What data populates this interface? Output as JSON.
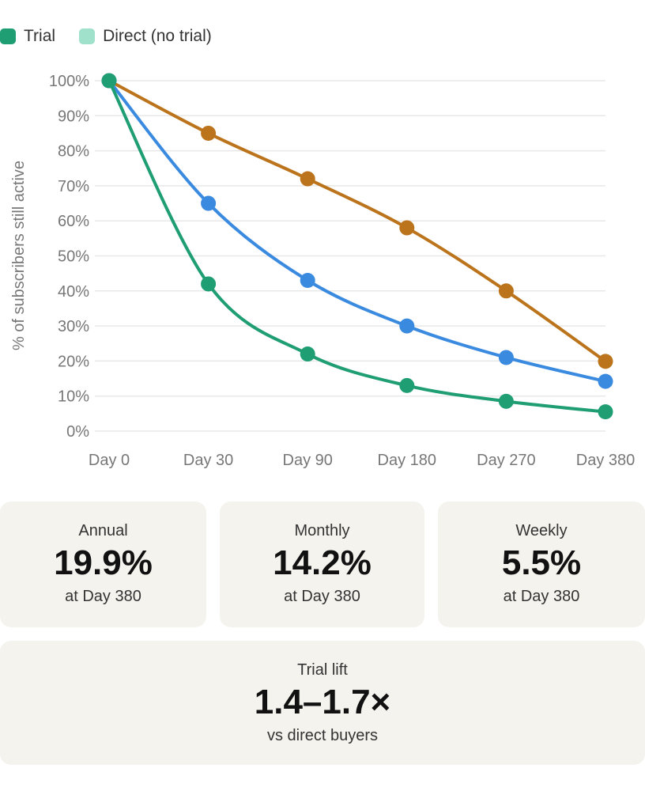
{
  "legend": [
    {
      "label": "Trial",
      "color": "#1e9e72"
    },
    {
      "label": "Direct (no trial)",
      "color": "#9fe1cb"
    }
  ],
  "chart_data": {
    "type": "line",
    "ylabel": "% of subscribers still active",
    "xlabel": "",
    "categories": [
      "Day 0",
      "Day 30",
      "Day 90",
      "Day 180",
      "Day 270",
      "Day 380"
    ],
    "ylim": [
      0,
      100
    ],
    "yticks": [
      "0%",
      "10%",
      "20%",
      "30%",
      "40%",
      "50%",
      "60%",
      "70%",
      "80%",
      "90%",
      "100%"
    ],
    "grid": true,
    "legend_position": "top-left",
    "series": [
      {
        "color": "#bb741b",
        "values": [
          100,
          85,
          72,
          58,
          40,
          19.9
        ]
      },
      {
        "color": "#3a8ae0",
        "values": [
          100,
          65,
          43,
          30,
          21,
          14.2
        ]
      },
      {
        "color": "#1e9e72",
        "values": [
          100,
          42,
          22,
          13,
          8.5,
          5.5
        ]
      }
    ]
  },
  "cards": [
    {
      "label": "Annual",
      "value": "19.9%",
      "sub": "at Day 380"
    },
    {
      "label": "Monthly",
      "value": "14.2%",
      "sub": "at Day 380"
    },
    {
      "label": "Weekly",
      "value": "5.5%",
      "sub": "at Day 380"
    }
  ],
  "lift": {
    "label": "Trial lift",
    "value": "1.4–1.7×",
    "sub": "vs direct buyers"
  }
}
